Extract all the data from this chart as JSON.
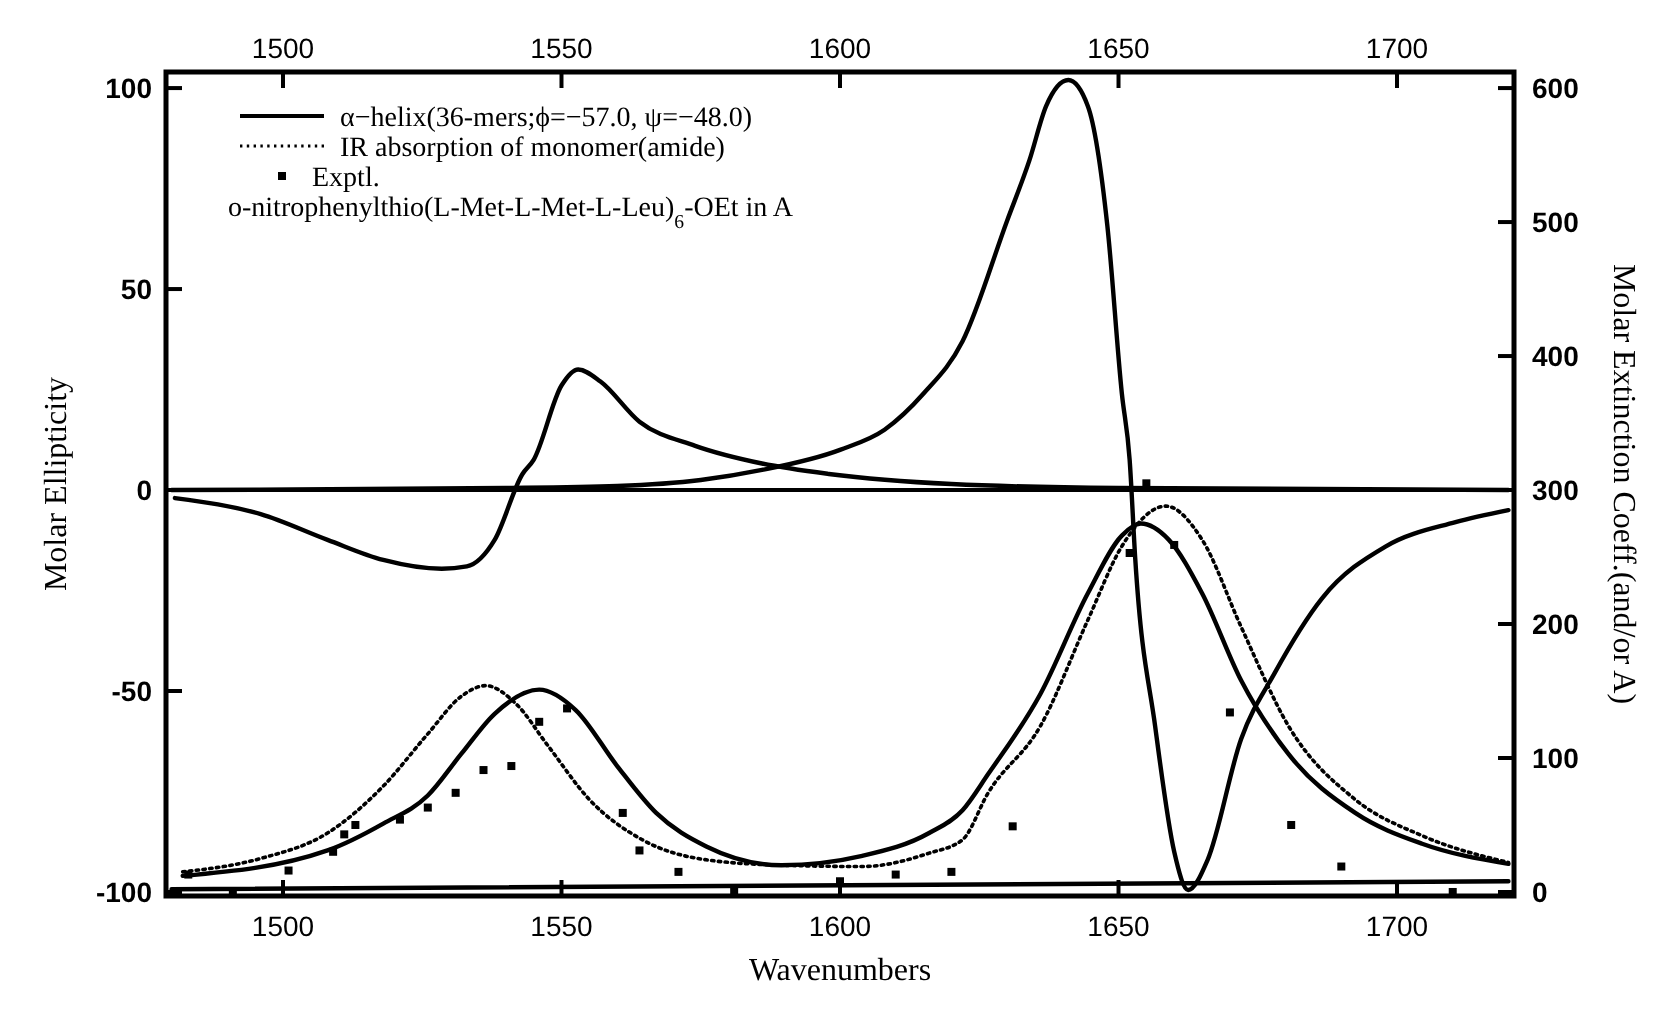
{
  "chart_data": {
    "type": "line",
    "xlabel": "Wavenumbers",
    "ylabel": "Molar Ellipticity",
    "y2label": "Molar Extinction Coeff.(and/or A)",
    "xlim": [
      1479,
      1721
    ],
    "xticks": [
      1500,
      1550,
      1600,
      1650,
      1700
    ],
    "x2lim": [
      1479,
      1721
    ],
    "x2ticks": [
      1500,
      1550,
      1600,
      1650,
      1700
    ],
    "ylim": [
      -101,
      104
    ],
    "yticks": [
      -100,
      -50,
      0,
      50,
      100
    ],
    "y2lim": [
      -3,
      612
    ],
    "y2ticks": [
      0,
      100,
      200,
      300,
      400,
      500,
      600
    ],
    "legend": "top left",
    "grid": false,
    "annotations": [
      "o-nitrophenylthio(L-Met-L-Met-L-Leu)$_{6}$-OEt in A"
    ],
    "ref_lines": [
      {
        "axis": "y",
        "value": 0,
        "color": "#000000"
      }
    ],
    "series": [
      {
        "name": "α−helix(36-mers;ϕ=−57.0, ψ=−48.0)",
        "color": "#000000",
        "line_style": "solid",
        "x": [
          1480,
          1540,
          1560,
          1575,
          1586,
          1600,
          1608,
          1615,
          1622,
          1630,
          1634,
          1637,
          1641,
          1644.5,
          1648,
          1650.6,
          1652,
          1653,
          1656.6,
          1660,
          1662.5,
          1666,
          1672,
          1678,
          1686.5,
          1698,
          1710.5,
          1720
        ],
        "values": [
          0,
          0.5,
          1,
          2.5,
          5,
          10,
          15,
          24,
          37,
          67,
          82,
          95.5,
          102,
          95.5,
          65.7,
          24,
          7.5,
          -17,
          -59,
          -90,
          -99.5,
          -92,
          -62,
          -45.6,
          -27,
          -14,
          -8,
          -5
        ]
      },
      {
        "color": "#000000",
        "line_style": "solid",
        "x": [
          1480.6,
          1496,
          1508,
          1518,
          1528.5,
          1533,
          1538,
          1543,
          1545,
          1550,
          1553,
          1557,
          1564,
          1574,
          1586,
          1598,
          1620,
          1650,
          1720
        ],
        "values": [
          -2,
          -6,
          -12.4,
          -17.4,
          -19.6,
          -19,
          -12.4,
          4,
          7.5,
          26,
          30,
          27,
          17,
          11,
          6.6,
          4,
          1.5,
          0.5,
          0
        ]
      },
      {
        "color": "#000000",
        "line_style": "solid",
        "axis": "y2",
        "x": [
          1482,
          1508,
          1518,
          1526,
          1532,
          1538,
          1546,
          1552.5,
          1560,
          1567,
          1576,
          1589.5,
          1604,
          1616,
          1622,
          1626.6,
          1636,
          1644.5,
          1650.6,
          1654,
          1659,
          1665,
          1672,
          1680.5,
          1692.5,
          1704.5,
          1720
        ],
        "values": [
          12,
          31,
          51,
          72,
          103,
          133,
          151,
          136,
          94,
          59,
          34,
          20,
          27,
          44,
          61,
          88,
          148,
          223,
          266,
          275,
          263,
          223,
          158,
          103,
          59,
          36,
          21
        ]
      },
      {
        "color": "#000000",
        "line_style": "solid",
        "axis": "y2",
        "x": [
          1480,
          1720
        ],
        "values": [
          2,
          8
        ]
      },
      {
        "name": "IR absorption of monomer(amide)",
        "color": "#000000",
        "line_style": "dotted",
        "axis": "y2",
        "x": [
          1482,
          1496,
          1508,
          1518,
          1526,
          1532,
          1536.4,
          1541.7,
          1547.6,
          1555,
          1564.5,
          1576,
          1589.5,
          1604,
          1616,
          1622,
          1626.6,
          1636,
          1644.5,
          1650.6,
          1658.5,
          1665,
          1672,
          1680.5,
          1692.5,
          1704.5,
          1720
        ],
        "values": [
          15,
          25,
          44,
          79,
          118,
          146,
          154,
          141,
          109,
          69,
          39,
          24,
          20,
          19,
          29,
          39,
          74,
          124,
          203,
          258,
          288,
          263,
          198,
          124,
          69,
          42,
          22
        ]
      },
      {
        "name": "Exptl.",
        "type": "scatter",
        "marker": "square",
        "color": "#000000",
        "axis": "y2",
        "x": [
          1483,
          1491,
          1501,
          1509,
          1511,
          1513,
          1521,
          1526,
          1531,
          1536,
          1541,
          1546,
          1551,
          1561,
          1564,
          1571,
          1581,
          1600,
          1610,
          1620,
          1631,
          1652,
          1655,
          1660,
          1670,
          1681,
          1690,
          1710
        ],
        "values": [
          13,
          0,
          16,
          30,
          43,
          50,
          54,
          63,
          74,
          91,
          94,
          127,
          137,
          59,
          31,
          15,
          0,
          8,
          13,
          15,
          49,
          253,
          305,
          259,
          134,
          50,
          19,
          0
        ]
      }
    ]
  }
}
